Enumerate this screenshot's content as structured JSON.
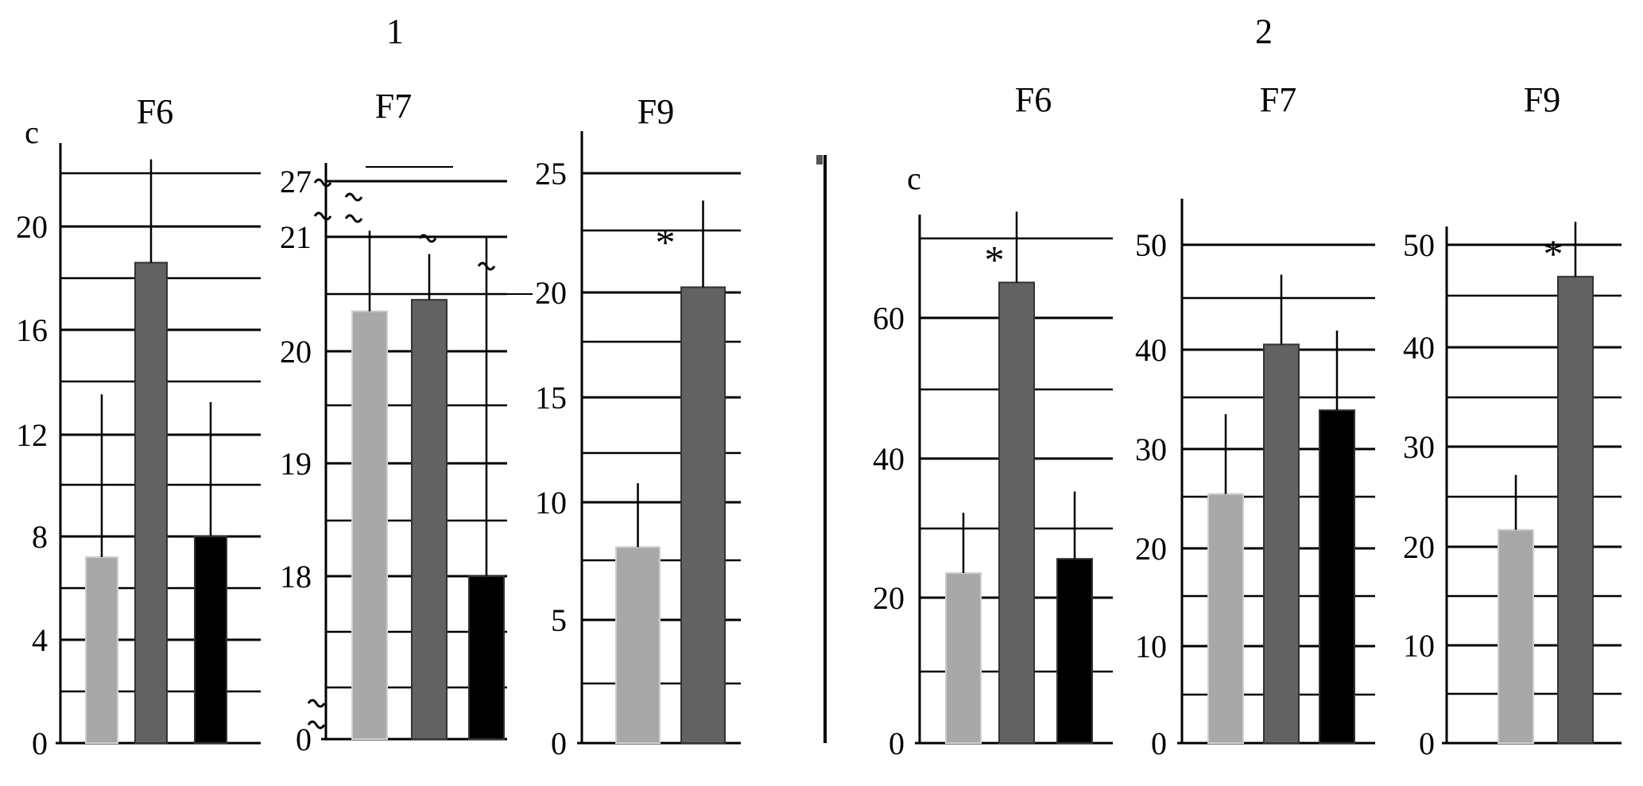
{
  "groups": [
    {
      "label": "1"
    },
    {
      "label": "2"
    }
  ],
  "colors": {
    "light": "#a8a8a8",
    "dark": "#626262",
    "black": "#000000",
    "axis": "#000000"
  },
  "chart_data": [
    {
      "type": "bar",
      "group": "1",
      "title": "F6",
      "ylabel": "c",
      "yticks": [
        "0",
        "4",
        "8",
        "12",
        "16",
        "20"
      ],
      "ylim": [
        0,
        23
      ],
      "series": [
        {
          "name": "bar-1",
          "color": "light",
          "value": 7.2,
          "error": 6.3
        },
        {
          "name": "bar-2",
          "color": "dark",
          "value": 18.6,
          "error": 4.0
        },
        {
          "name": "bar-3",
          "color": "black",
          "value": 8.0,
          "error": 5.2
        }
      ],
      "asterisks": []
    },
    {
      "type": "bar",
      "group": "1",
      "title": "F7",
      "ylabel": "",
      "yticks": [
        "0",
        "18",
        "19",
        "20",
        "21",
        "27"
      ],
      "axis_break": true,
      "series": [
        {
          "name": "bar-1",
          "color": "light",
          "value": 20.35,
          "error": 1.3
        },
        {
          "name": "bar-2",
          "color": "dark",
          "value": 20.45,
          "error": 0.4
        },
        {
          "name": "bar-3",
          "color": "black",
          "value": 18.0,
          "error": 3.1
        }
      ],
      "asterisks": []
    },
    {
      "type": "bar",
      "group": "1",
      "title": "F9",
      "ylabel": "",
      "yticks": [
        "0",
        "5",
        "10",
        "15",
        "20",
        "25"
      ],
      "ylim": [
        0,
        27
      ],
      "series": [
        {
          "name": "bar-1",
          "color": "light",
          "value": 8.6,
          "error": 2.8
        },
        {
          "name": "bar-2",
          "color": "dark",
          "value": 20.0,
          "error": 3.8
        }
      ],
      "asterisks": [
        "*"
      ]
    },
    {
      "type": "bar",
      "group": "2",
      "title": "F6",
      "ylabel": "c",
      "yticks": [
        "0",
        "20",
        "40",
        "60"
      ],
      "ylim": [
        0,
        76
      ],
      "series": [
        {
          "name": "bar-1",
          "color": "light",
          "value": 24,
          "error": 8.5
        },
        {
          "name": "bar-2",
          "color": "dark",
          "value": 65,
          "error": 10
        },
        {
          "name": "bar-3",
          "color": "black",
          "value": 26,
          "error": 9.5
        }
      ],
      "asterisks": [
        "*"
      ]
    },
    {
      "type": "bar",
      "group": "2",
      "title": "F7",
      "ylabel": "",
      "yticks": [
        "0",
        "10",
        "20",
        "30",
        "40",
        "50"
      ],
      "ylim": [
        0,
        55
      ],
      "series": [
        {
          "name": "bar-1",
          "color": "light",
          "value": 25,
          "error": 8
        },
        {
          "name": "bar-2",
          "color": "dark",
          "value": 40,
          "error": 7
        },
        {
          "name": "bar-3",
          "color": "black",
          "value": 33.4,
          "error": 8
        }
      ],
      "asterisks": []
    },
    {
      "type": "bar",
      "group": "2",
      "title": "F9",
      "ylabel": "",
      "yticks": [
        "0",
        "10",
        "20",
        "30",
        "40",
        "50"
      ],
      "ylim": [
        0,
        53
      ],
      "series": [
        {
          "name": "bar-1",
          "color": "light",
          "value": 21.4,
          "error": 5.5
        },
        {
          "name": "bar-2",
          "color": "dark",
          "value": 46.8,
          "error": 5.5
        }
      ],
      "asterisks": [
        "*"
      ]
    }
  ]
}
